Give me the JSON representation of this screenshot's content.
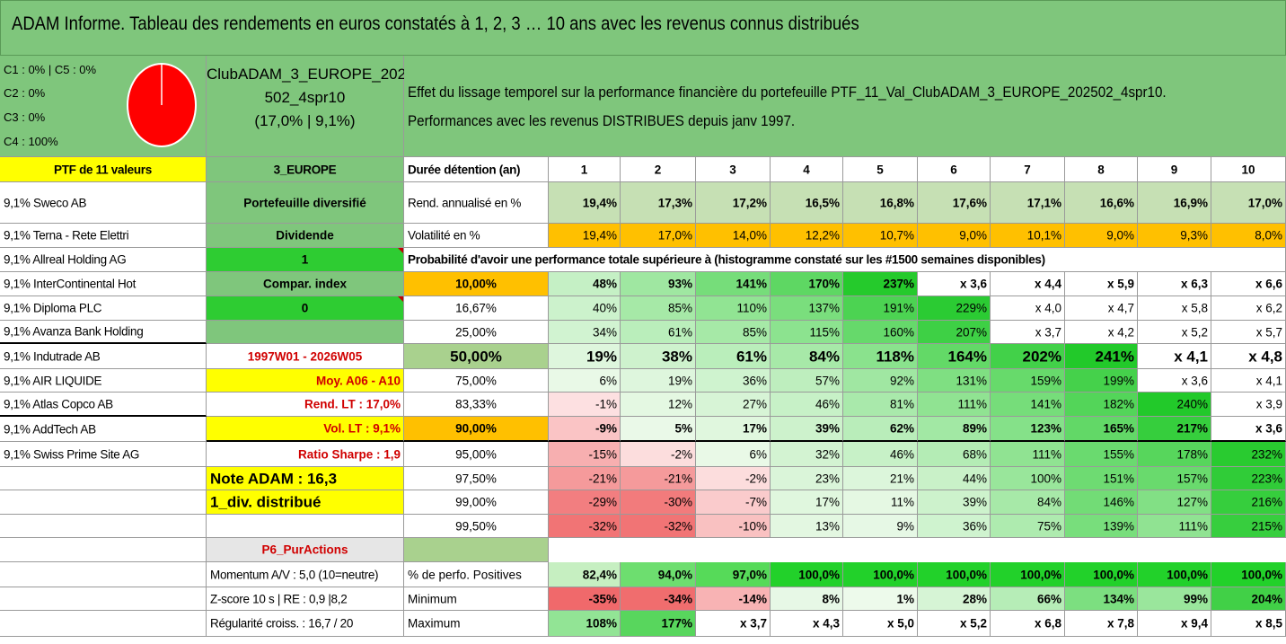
{
  "title": "ADAM Informe. Tableau des rendements en euros constatés à 1, 2, 3 … 10 ans avec les revenus connus distribués",
  "composition": {
    "line1": "C1 : 0% | C5 : 0%",
    "line2": "C2 : 0%",
    "line3": "C3 : 0%",
    "line4": "C4 : 100%",
    "pie_color": "#ff0000",
    "values": [
      0,
      0,
      0,
      100,
      0
    ]
  },
  "portfolio": {
    "name_line1": "ClubADAM_3_EUROPE_202",
    "name_line2": "502_4spr10",
    "name_line3": "(17,0% | 9,1%)"
  },
  "description": {
    "line1": "Effet du lissage temporel sur la performance financière du portefeuille PTF_11_Val_ClubADAM_3_EUROPE_202502_4spr10.",
    "line2": "Performances avec les revenus DISTRIBUES depuis janv 1997."
  },
  "header": {
    "ptf_label": "PTF de 11 valeurs",
    "zone": "3_EUROPE",
    "duration_label": "Durée détention (an)",
    "years": [
      "1",
      "2",
      "3",
      "4",
      "5",
      "6",
      "7",
      "8",
      "9",
      "10"
    ]
  },
  "holdings": [
    "9,1% Sweco AB",
    "9,1% Terna - Rete Elettri",
    "9,1% Allreal Holding AG",
    "9,1% InterContinental Hot",
    "9,1% Diploma PLC",
    "9,1% Avanza Bank Holding",
    "9,1% Indutrade AB",
    "9,1% AIR LIQUIDE",
    "9,1% Atlas Copco AB",
    "9,1% AddTech AB",
    "9,1% Swiss Prime Site AG"
  ],
  "info_column": [
    "Portefeuille diversifié",
    "Dividende",
    "1",
    "Compar. index",
    "0",
    "",
    "1997W01 - 2026W05",
    "Moy. A06 - A10",
    "Rend. LT : 17,0%",
    "Vol. LT : 9,1%",
    "Ratio Sharpe : 1,9",
    "Note ADAM : 16,3",
    "1_div. distribué",
    "",
    "P6_PurActions",
    "Momentum A/V : 5,0 (10=neutre)",
    "Z-score 10 s | RE : 0,9 |8,2",
    "Régularité croiss. : 16,7 / 20"
  ],
  "rend_row": {
    "label": "Rend. annualisé en %",
    "values": [
      "19,4%",
      "17,3%",
      "17,2%",
      "16,5%",
      "16,8%",
      "17,6%",
      "17,1%",
      "16,6%",
      "16,9%",
      "17,0%"
    ]
  },
  "vol_row": {
    "label": "Volatilité en %",
    "values": [
      "19,4%",
      "17,0%",
      "14,0%",
      "12,2%",
      "10,7%",
      "9,0%",
      "10,1%",
      "9,0%",
      "9,3%",
      "8,0%"
    ]
  },
  "proba_title": "Probabilité d'avoir une performance totale supérieure à (histogramme constaté sur les #1500 semaines disponibles)",
  "proba_rows": [
    {
      "p": "10,00%",
      "values": [
        "48%",
        "93%",
        "141%",
        "170%",
        "237%",
        "x 3,6",
        "x 4,4",
        "x 5,9",
        "x 6,3",
        "x 6,6"
      ]
    },
    {
      "p": "16,67%",
      "values": [
        "40%",
        "85%",
        "110%",
        "137%",
        "191%",
        "229%",
        "x 4,0",
        "x 4,7",
        "x 5,8",
        "x 6,2"
      ]
    },
    {
      "p": "25,00%",
      "values": [
        "34%",
        "61%",
        "85%",
        "115%",
        "160%",
        "207%",
        "x 3,7",
        "x 4,2",
        "x 5,2",
        "x 5,7"
      ]
    },
    {
      "p": "50,00%",
      "values": [
        "19%",
        "38%",
        "61%",
        "84%",
        "118%",
        "164%",
        "202%",
        "241%",
        "x 4,1",
        "x 4,8"
      ]
    },
    {
      "p": "75,00%",
      "values": [
        "6%",
        "19%",
        "36%",
        "57%",
        "92%",
        "131%",
        "159%",
        "199%",
        "x 3,6",
        "x 4,1"
      ]
    },
    {
      "p": "83,33%",
      "values": [
        "-1%",
        "12%",
        "27%",
        "46%",
        "81%",
        "111%",
        "141%",
        "182%",
        "240%",
        "x 3,9"
      ]
    },
    {
      "p": "90,00%",
      "values": [
        "-9%",
        "5%",
        "17%",
        "39%",
        "62%",
        "89%",
        "123%",
        "165%",
        "217%",
        "x 3,6"
      ]
    },
    {
      "p": "95,00%",
      "values": [
        "-15%",
        "-2%",
        "6%",
        "32%",
        "46%",
        "68%",
        "111%",
        "155%",
        "178%",
        "232%"
      ]
    },
    {
      "p": "97,50%",
      "values": [
        "-21%",
        "-21%",
        "-2%",
        "23%",
        "21%",
        "44%",
        "100%",
        "151%",
        "157%",
        "223%"
      ]
    },
    {
      "p": "99,00%",
      "values": [
        "-29%",
        "-30%",
        "-7%",
        "17%",
        "11%",
        "39%",
        "84%",
        "146%",
        "127%",
        "216%"
      ]
    },
    {
      "p": "99,50%",
      "values": [
        "-32%",
        "-32%",
        "-10%",
        "13%",
        "9%",
        "36%",
        "75%",
        "139%",
        "111%",
        "215%"
      ]
    }
  ],
  "summary_rows": [
    {
      "label": "% de perfo. Positives",
      "values": [
        "82,4%",
        "94,0%",
        "97,0%",
        "100,0%",
        "100,0%",
        "100,0%",
        "100,0%",
        "100,0%",
        "100,0%",
        "100,0%"
      ]
    },
    {
      "label": "Minimum",
      "values": [
        "-35%",
        "-34%",
        "-14%",
        "8%",
        "1%",
        "28%",
        "66%",
        "134%",
        "99%",
        "204%"
      ]
    },
    {
      "label": "Maximum",
      "values": [
        "108%",
        "177%",
        "x 3,7",
        "x 4,3",
        "x 5,0",
        "x 5,2",
        "x 6,8",
        "x 7,8",
        "x 9,4",
        "x 8,5"
      ]
    }
  ],
  "colors": {
    "title_green": "#7fc67c",
    "yellow": "#ffff00",
    "orange": "#ffc000",
    "bright_green": "#2ecc32",
    "pale_green": "#c6e0b4",
    "red_text": "#d00000"
  }
}
